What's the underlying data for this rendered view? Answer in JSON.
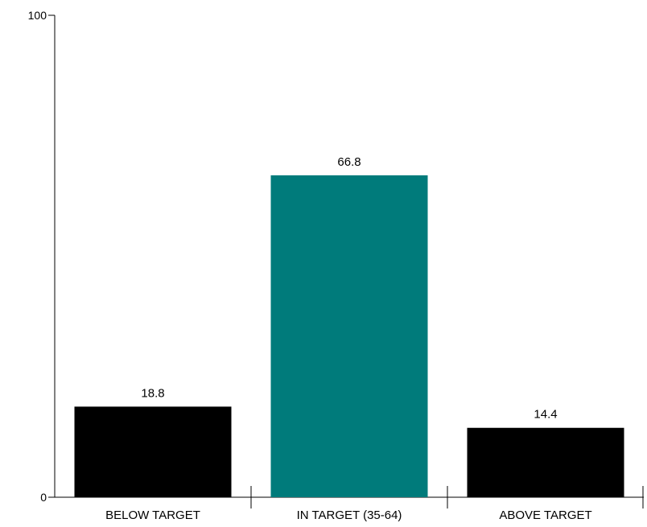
{
  "chart_data": {
    "type": "bar",
    "title": "",
    "xlabel": "",
    "ylabel": "",
    "categories": [
      "BELOW TARGET",
      "IN TARGET (35-64)",
      "ABOVE TARGET"
    ],
    "values": [
      18.8,
      66.8,
      14.4
    ],
    "value_labels": [
      "18.8",
      "66.8",
      "14.4"
    ],
    "colors": [
      "#000000",
      "#007b7b",
      "#000000"
    ],
    "ylim": [
      0,
      100
    ],
    "yticks": [
      0,
      100
    ],
    "ytick_labels": [
      "0",
      "100"
    ],
    "grid": false,
    "legend": "none"
  }
}
